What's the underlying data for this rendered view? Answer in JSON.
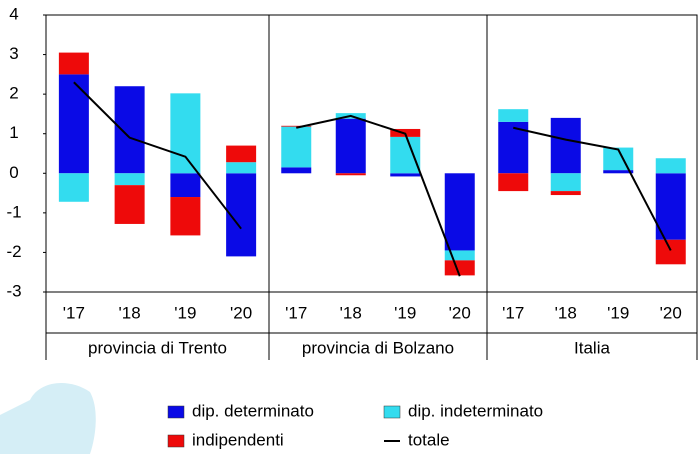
{
  "chart_data": {
    "type": "bar",
    "stacked": true,
    "categories": [
      "'17",
      "'18",
      "'19",
      "'20",
      "'17",
      "'18",
      "'19",
      "'20",
      "'17",
      "'18",
      "'19",
      "'20"
    ],
    "groups": [
      "provincia di Trento",
      "provincia di Bolzano",
      "Italia"
    ],
    "series": [
      {
        "name": "dip. determinato",
        "color": "#0a0ae6",
        "values": [
          2.5,
          2.2,
          -0.6,
          -2.1,
          0.15,
          1.38,
          -0.08,
          -1.95,
          1.3,
          1.4,
          0.08,
          -1.68
        ]
      },
      {
        "name": "dip. indeterminato",
        "color": "#33dcef",
        "values": [
          -0.72,
          -0.3,
          2.02,
          0.28,
          1.03,
          0.14,
          0.92,
          -0.25,
          0.32,
          -0.45,
          0.57,
          0.38
        ]
      },
      {
        "name": "indipendenti",
        "color": "#ee0a0a",
        "values": [
          0.55,
          -0.98,
          -0.97,
          0.42,
          0.02,
          -0.05,
          0.2,
          -0.38,
          -0.45,
          -0.1,
          0,
          -0.62
        ]
      },
      {
        "name": "totale",
        "type": "line",
        "color": "#000000",
        "values": [
          2.3,
          0.9,
          0.42,
          -1.4,
          1.15,
          1.45,
          1.0,
          -2.6,
          1.15,
          0.85,
          0.6,
          -1.95
        ]
      }
    ],
    "ylim": [
      -3,
      4
    ],
    "yticks": [
      -3,
      -2,
      -1,
      0,
      1,
      2,
      3,
      4
    ]
  }
}
